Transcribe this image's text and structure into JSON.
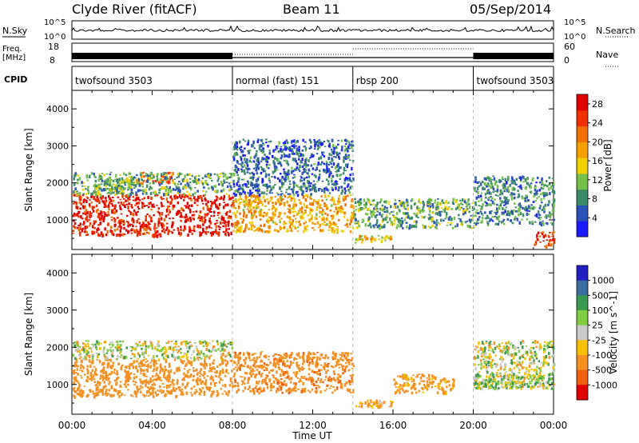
{
  "header": {
    "station": "Clyde River (fitACF)",
    "beam": "Beam 11",
    "date": "05/Sep/2014"
  },
  "top_panels": {
    "nsky": {
      "label": "N.Sky",
      "tick_top": "10^5",
      "tick_bottom": "10^0",
      "right_ticks": [
        "10^5",
        "10^0"
      ],
      "right_label": "N.Search"
    },
    "freq": {
      "label_line1": "Freq.",
      "label_line2": "[MHz]",
      "ticks": [
        "18",
        "8"
      ],
      "right_ticks": [
        "60",
        "0"
      ],
      "right_label": "Nave"
    },
    "cpid": {
      "label": "CPID",
      "segments": [
        {
          "name": "twofsound 3503",
          "start_hour": 0
        },
        {
          "name": "normal (fast) 151",
          "start_hour": 8
        },
        {
          "name": "rbsp 200",
          "start_hour": 14
        },
        {
          "name": "twofsound 3503",
          "start_hour": 20
        }
      ]
    }
  },
  "chart_data": [
    {
      "type": "heatmap",
      "title": "Power",
      "xlabel": "Time UT",
      "ylabel": "Slant Range [km]",
      "x_ticks": [
        "00:00",
        "04:00",
        "08:00",
        "12:00",
        "16:00",
        "20:00",
        "00:00"
      ],
      "xlim_hours": [
        0,
        24
      ],
      "y_ticks": [
        1000,
        2000,
        3000,
        4000
      ],
      "ylim": [
        200,
        4500
      ],
      "colorbar": {
        "label": "Power [dB]",
        "ticks": [
          "4",
          "8",
          "12",
          "16",
          "20",
          "24",
          "28"
        ],
        "range": [
          0,
          30
        ],
        "colors": [
          "#1a1aff",
          "#2b52b8",
          "#3b8a6a",
          "#74c04a",
          "#f0d000",
          "#f5a000",
          "#f07000",
          "#f03000",
          "#e00000"
        ]
      },
      "regions": [
        {
          "t0": 0,
          "t1": 8,
          "r0": 600,
          "r1": 1700,
          "level": 27
        },
        {
          "t0": 1,
          "t1": 3,
          "r0": 1700,
          "r1": 2100,
          "level": 12
        },
        {
          "t0": 3,
          "t1": 5,
          "r0": 2000,
          "r1": 2300,
          "level": 22
        },
        {
          "t0": 0,
          "t1": 8,
          "r0": 1700,
          "r1": 2300,
          "level": 10
        },
        {
          "t0": 8,
          "t1": 14,
          "r0": 700,
          "r1": 1700,
          "level": 18
        },
        {
          "t0": 8,
          "t1": 14,
          "r0": 1700,
          "r1": 3200,
          "level": 6
        },
        {
          "t0": 14,
          "t1": 16,
          "r0": 400,
          "r1": 600,
          "level": 16
        },
        {
          "t0": 14,
          "t1": 20,
          "r0": 800,
          "r1": 1600,
          "level": 10
        },
        {
          "t0": 20,
          "t1": 24,
          "r0": 900,
          "r1": 2200,
          "level": 8
        },
        {
          "t0": 23,
          "t1": 24,
          "r0": 300,
          "r1": 700,
          "level": 24
        }
      ]
    },
    {
      "type": "heatmap",
      "title": "Velocity",
      "xlabel": "Time UT",
      "ylabel": "Slant Range [km]",
      "x_ticks": [
        "00:00",
        "04:00",
        "08:00",
        "12:00",
        "16:00",
        "20:00",
        "00:00"
      ],
      "xlim_hours": [
        0,
        24
      ],
      "y_ticks": [
        1000,
        2000,
        3000,
        4000
      ],
      "ylim": [
        200,
        4500
      ],
      "colorbar": {
        "label": "Velocity [m s^-1]",
        "ticks": [
          "1000",
          "500",
          "100",
          "25",
          "-25",
          "-100",
          "-500",
          "-1000"
        ],
        "colors": [
          "#2020c0",
          "#3a6ea0",
          "#3c9a50",
          "#80cc40",
          "#c8c8c8",
          "#f5c000",
          "#f59020",
          "#f06010",
          "#e00000"
        ]
      },
      "regions": [
        {
          "t0": 0,
          "t1": 8,
          "r0": 700,
          "r1": 1700,
          "level": -300
        },
        {
          "t0": 0,
          "t1": 8,
          "r0": 1700,
          "r1": 2200,
          "level": 0
        },
        {
          "t0": 8,
          "t1": 14,
          "r0": 800,
          "r1": 1900,
          "level": -400
        },
        {
          "t0": 14,
          "t1": 16,
          "r0": 400,
          "r1": 600,
          "level": -150
        },
        {
          "t0": 16,
          "t1": 19,
          "r0": 800,
          "r1": 1300,
          "level": -200
        },
        {
          "t0": 20,
          "t1": 24,
          "r0": 900,
          "r1": 2200,
          "level": 0
        },
        {
          "t0": 20,
          "t1": 24,
          "r0": 900,
          "r1": 1300,
          "level": 60
        }
      ]
    }
  ]
}
